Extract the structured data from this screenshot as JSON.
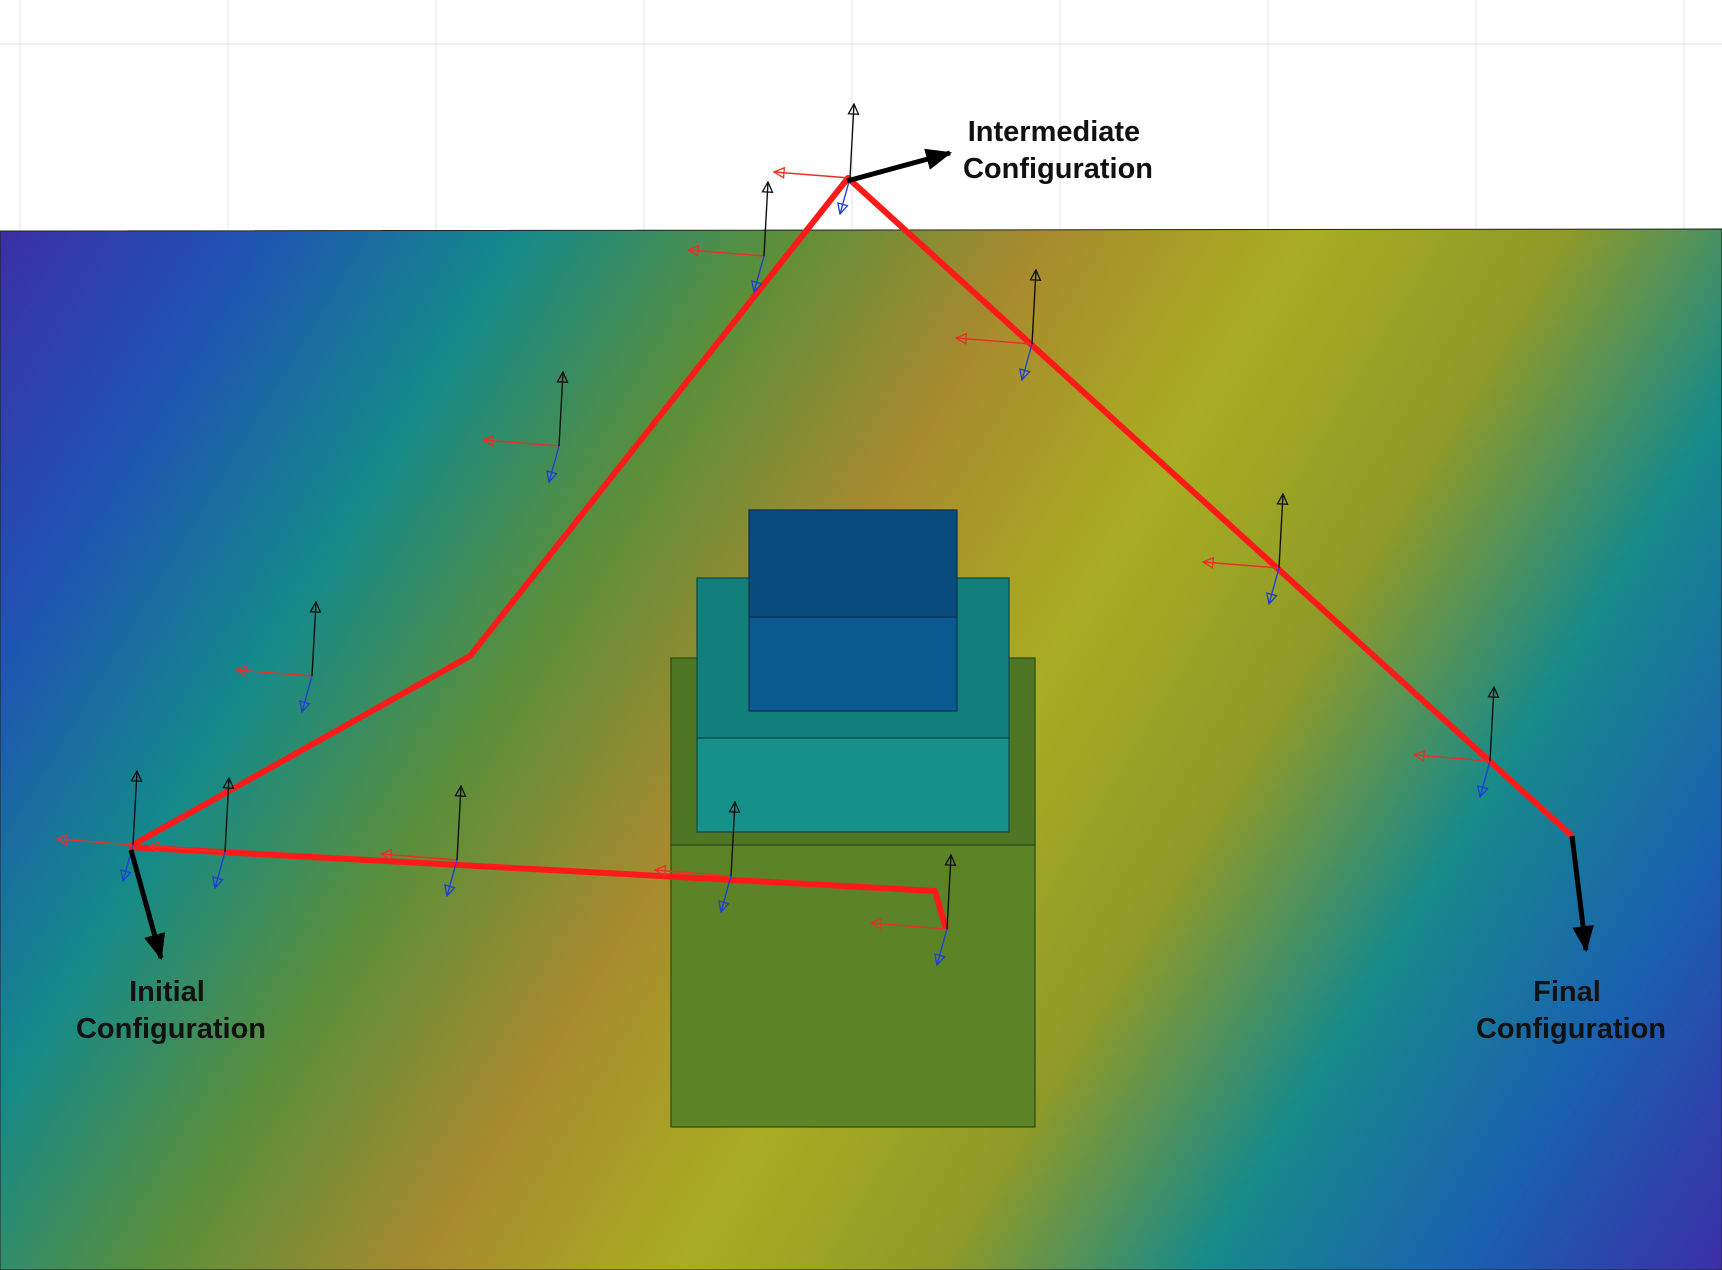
{
  "labels": {
    "intermediate": [
      "Intermediate",
      "Configuration"
    ],
    "initial": [
      "Initial",
      "Configuration"
    ],
    "final": [
      "Final",
      "Configuration"
    ]
  },
  "colors": {
    "path": "#ff1a1a",
    "frame_x_axis": "#e8302a",
    "frame_y_axis": "#111111",
    "frame_z_axis": "#1f3fd6",
    "config_arrow": "#000000",
    "grid": "#e3e3e3",
    "floor_gradient": [
      "#3b2fa6",
      "#1f54b3",
      "#148a8a",
      "#5b8f3a",
      "#a88a2e",
      "#a9ad22",
      "#8f9a28",
      "#178a8a",
      "#1a60b0",
      "#3b2fa6"
    ],
    "robot": {
      "base": "#5c8427",
      "base_upper": "#4f7624",
      "body": "#159189",
      "body_upper": "#137f7a",
      "head_lower": "#0c5891",
      "head_upper": "#0a4b7e"
    }
  },
  "icons": {
    "frame_marker": "coordinate-frame-icon",
    "config_arrow": "configuration-arrow-icon"
  }
}
